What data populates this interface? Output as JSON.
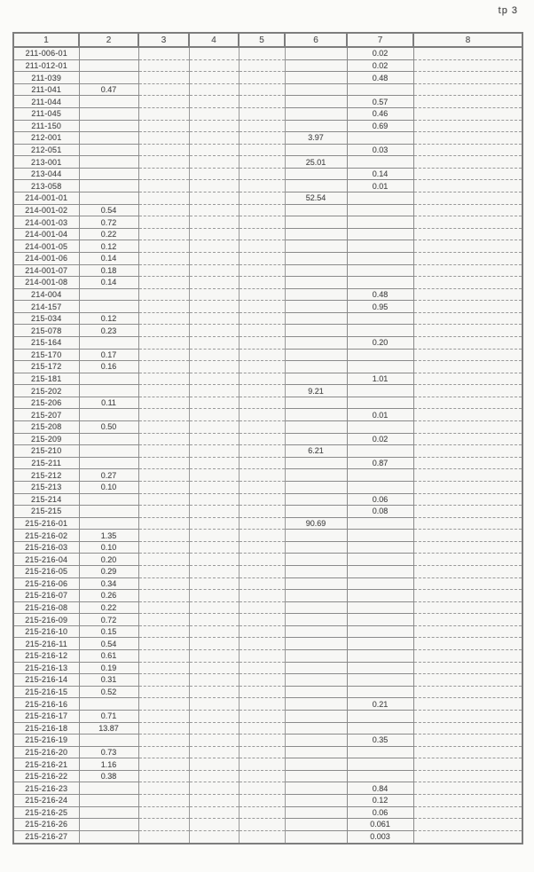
{
  "page": {
    "label": "tp 3"
  },
  "colors": {
    "table_line": "#8f8f8f",
    "text": "#4c4c4c",
    "background": "#fbfbf9"
  },
  "table": {
    "headers": [
      "1",
      "2",
      "3",
      "4",
      "5",
      "6",
      "7",
      "8"
    ],
    "rows": [
      {
        "id": "211-006-01",
        "c7": "0.02"
      },
      {
        "id": "211-012-01",
        "c7": "0.02"
      },
      {
        "id": "211-039",
        "c7": "0.48"
      },
      {
        "id": "211-041",
        "c2": "0.47"
      },
      {
        "id": "211-044",
        "c7": "0.57"
      },
      {
        "id": "211-045",
        "c7": "0.46"
      },
      {
        "id": "211-150",
        "c7": "0.69"
      },
      {
        "id": "212-001",
        "c6": "3.97"
      },
      {
        "id": "212-051",
        "c7": "0.03"
      },
      {
        "id": "213-001",
        "c6": "25.01"
      },
      {
        "id": "213-044",
        "c7": "0.14"
      },
      {
        "id": "213-058",
        "c7": "0.01"
      },
      {
        "id": "214-001-01",
        "c6": "52.54"
      },
      {
        "id": "214-001-02",
        "c2": "0.54"
      },
      {
        "id": "214-001-03",
        "c2": "0.72"
      },
      {
        "id": "214-001-04",
        "c2": "0.22"
      },
      {
        "id": "214-001-05",
        "c2": "0.12"
      },
      {
        "id": "214-001-06",
        "c2": "0.14"
      },
      {
        "id": "214-001-07",
        "c2": "0.18"
      },
      {
        "id": "214-001-08",
        "c2": "0.14"
      },
      {
        "id": "214-004",
        "c7": "0.48"
      },
      {
        "id": "214-157",
        "c7": "0.95"
      },
      {
        "id": "215-034",
        "c2": "0.12"
      },
      {
        "id": "215-078",
        "c2": "0.23"
      },
      {
        "id": "215-164",
        "c7": "0.20"
      },
      {
        "id": "215-170",
        "c2": "0.17"
      },
      {
        "id": "215-172",
        "c2": "0.16"
      },
      {
        "id": "215-181",
        "c7": "1.01"
      },
      {
        "id": "215-202",
        "c6": "9.21"
      },
      {
        "id": "215-206",
        "c2": "0.11"
      },
      {
        "id": "215-207",
        "c7": "0.01"
      },
      {
        "id": "215-208",
        "c2": "0.50"
      },
      {
        "id": "215-209",
        "c7": "0.02"
      },
      {
        "id": "215-210",
        "c6": "6.21"
      },
      {
        "id": "215-211",
        "c7": "0.87"
      },
      {
        "id": "215-212",
        "c2": "0.27"
      },
      {
        "id": "215-213",
        "c2": "0.10"
      },
      {
        "id": "215-214",
        "c7": "0.06"
      },
      {
        "id": "215-215",
        "c7": "0.08"
      },
      {
        "id": "215-216-01",
        "c6": "90.69"
      },
      {
        "id": "215-216-02",
        "c2": "1.35"
      },
      {
        "id": "215-216-03",
        "c2": "0.10"
      },
      {
        "id": "215-216-04",
        "c2": "0.20"
      },
      {
        "id": "215-216-05",
        "c2": "0.29"
      },
      {
        "id": "215-216-06",
        "c2": "0.34"
      },
      {
        "id": "215-216-07",
        "c2": "0.26"
      },
      {
        "id": "215-216-08",
        "c2": "0.22"
      },
      {
        "id": "215-216-09",
        "c2": "0.72"
      },
      {
        "id": "215-216-10",
        "c2": "0.15"
      },
      {
        "id": "215-216-11",
        "c2": "0.54"
      },
      {
        "id": "215-216-12",
        "c2": "0.61"
      },
      {
        "id": "215-216-13",
        "c2": "0.19"
      },
      {
        "id": "215-216-14",
        "c2": "0.31"
      },
      {
        "id": "215-216-15",
        "c2": "0.52"
      },
      {
        "id": "215-216-16",
        "c7": "0.21"
      },
      {
        "id": "215-216-17",
        "c2": "0.71"
      },
      {
        "id": "215-216-18",
        "c2": "13.87"
      },
      {
        "id": "215-216-19",
        "c7": "0.35"
      },
      {
        "id": "215-216-20",
        "c2": "0.73"
      },
      {
        "id": "215-216-21",
        "c2": "1.16"
      },
      {
        "id": "215-216-22",
        "c2": "0.38"
      },
      {
        "id": "215-216-23",
        "c7": "0.84"
      },
      {
        "id": "215-216-24",
        "c7": "0.12"
      },
      {
        "id": "215-216-25",
        "c7": "0.06"
      },
      {
        "id": "215-216-26",
        "c7": "0.061"
      },
      {
        "id": "215-216-27",
        "c7": "0.003"
      }
    ]
  }
}
